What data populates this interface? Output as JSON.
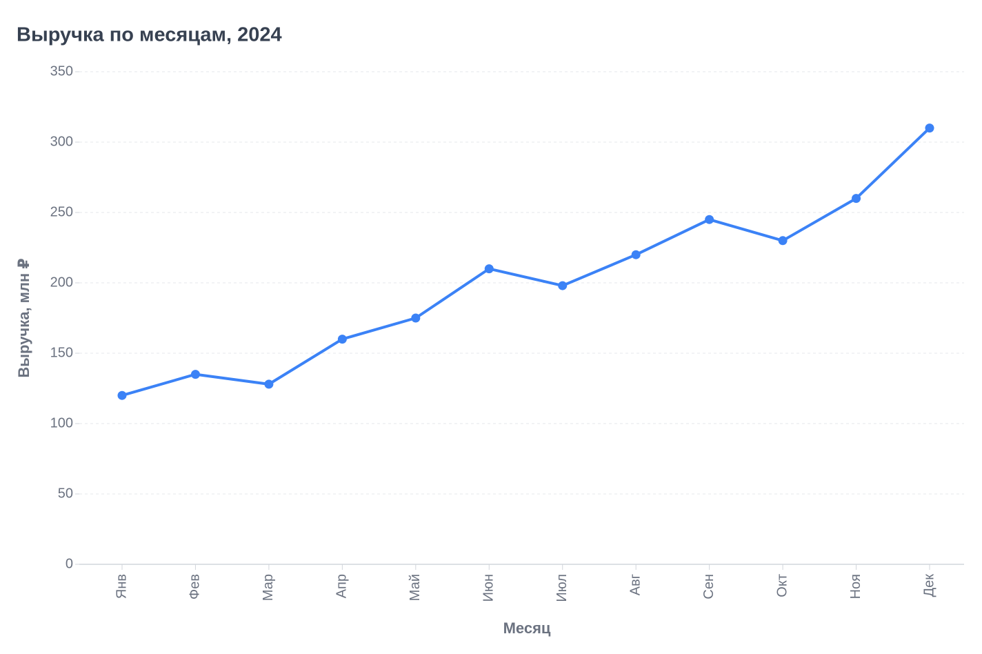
{
  "chart_data": {
    "type": "line",
    "title": "Выручка по месяцам, 2024",
    "x_label": "Месяц",
    "y_label": "Выручка, млн ₽",
    "categories": [
      "Янв",
      "Фев",
      "Мар",
      "Апр",
      "Май",
      "Июн",
      "Июл",
      "Авг",
      "Сен",
      "Окт",
      "Ноя",
      "Дек"
    ],
    "series": [
      {
        "name": "Выручка",
        "color": "#3b82f6",
        "values": [
          120,
          135,
          128,
          160,
          175,
          210,
          198,
          220,
          245,
          230,
          260,
          310
        ]
      }
    ],
    "ylim": [
      0,
      350
    ],
    "yticks": [
      0,
      50,
      100,
      150,
      200,
      250,
      300,
      350
    ],
    "grid": true
  }
}
